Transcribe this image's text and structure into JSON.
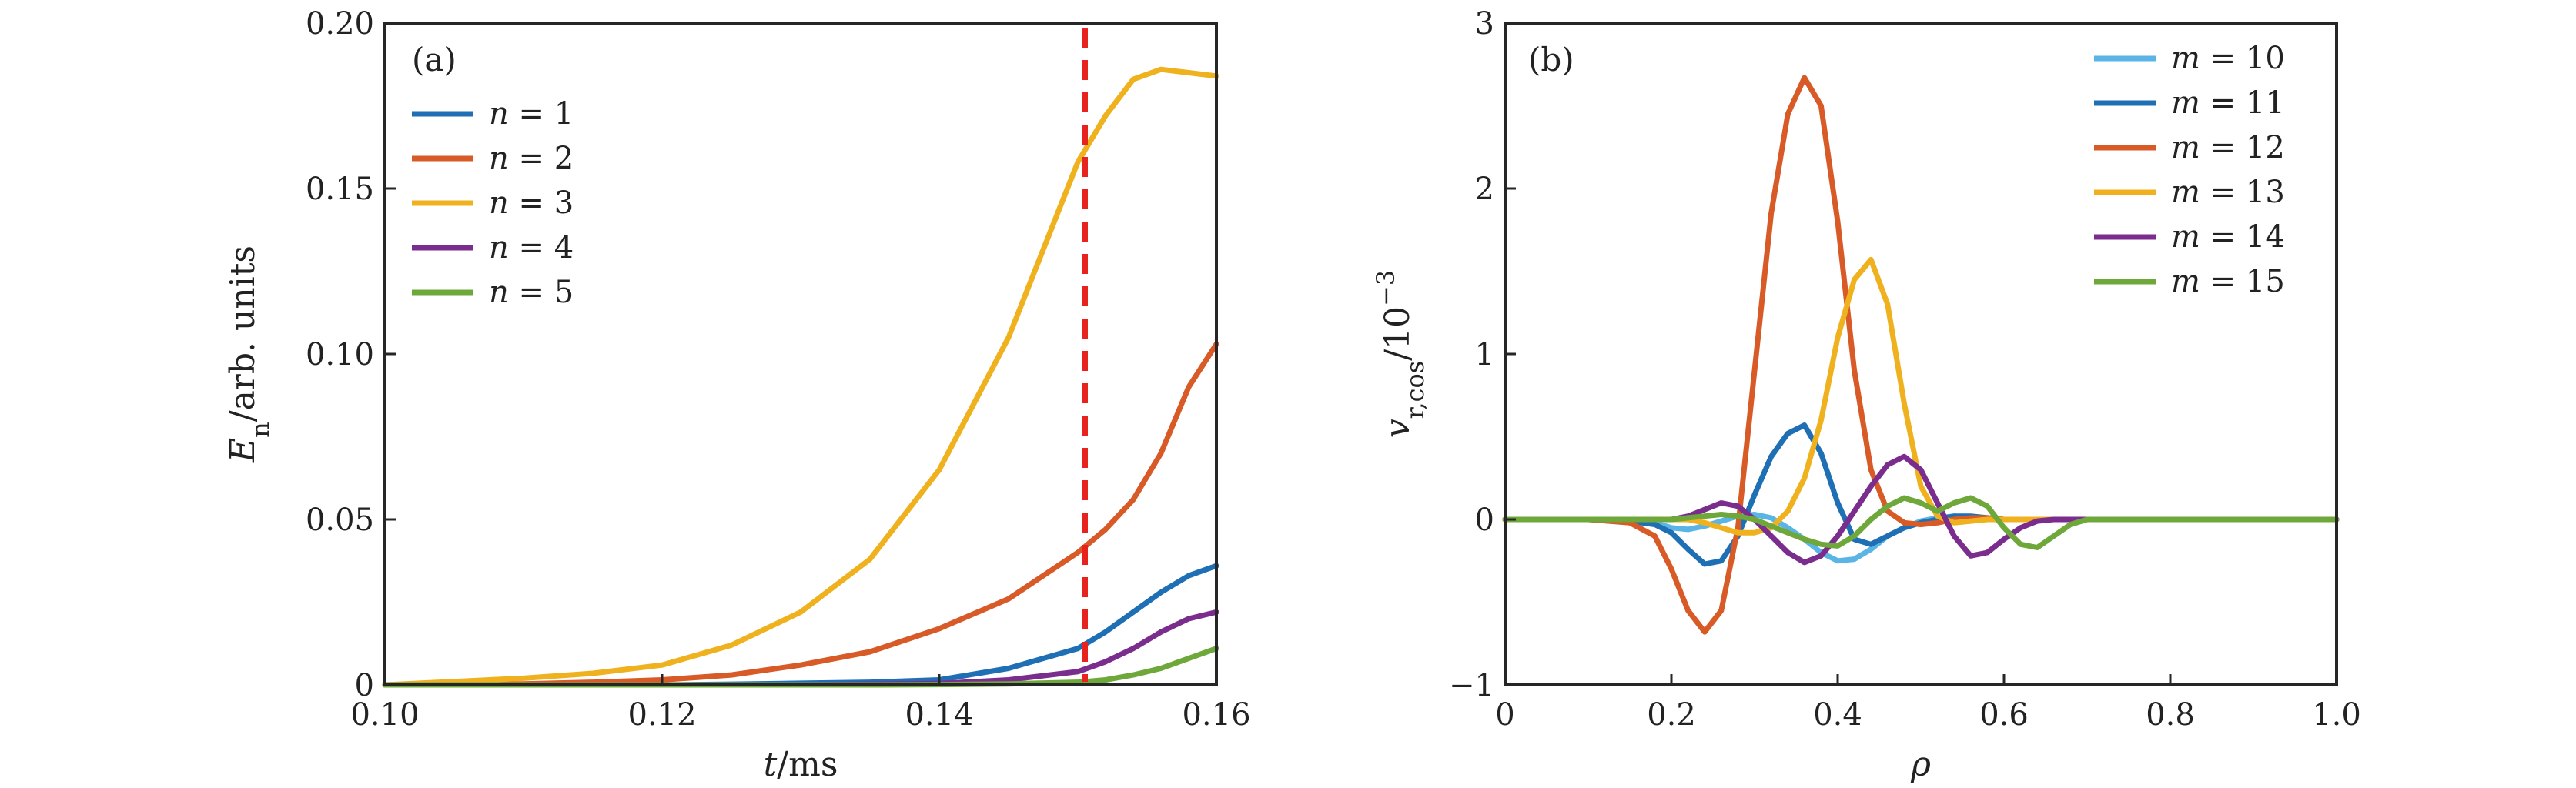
{
  "chart_data": [
    {
      "type": "line",
      "panel_label": "(a)",
      "xlabel": "t/ms",
      "ylabel": "E_n/arb. units",
      "xlim": [
        0.1,
        0.16
      ],
      "ylim": [
        0,
        0.2
      ],
      "xticks": [
        "0.10",
        "0.12",
        "0.14",
        "0.16"
      ],
      "yticks": [
        "0",
        "0.05",
        "0.10",
        "0.15",
        "0.20"
      ],
      "legend_position": "top-left",
      "vertical_marker": {
        "x": 0.1505,
        "color": "#e8221c",
        "style": "dashed"
      },
      "x": [
        0.1,
        0.11,
        0.115,
        0.12,
        0.125,
        0.13,
        0.135,
        0.14,
        0.145,
        0.15,
        0.152,
        0.154,
        0.156,
        0.158,
        0.16
      ],
      "series": [
        {
          "name": "n = 1",
          "color": "#1f6fb5",
          "values": [
            0.0,
            0.0,
            0.0,
            0.0,
            0.0002,
            0.0005,
            0.0008,
            0.0015,
            0.005,
            0.011,
            0.016,
            0.022,
            0.028,
            0.033,
            0.036
          ]
        },
        {
          "name": "n = 2",
          "color": "#d85a26",
          "values": [
            0.0,
            0.0003,
            0.0008,
            0.0015,
            0.003,
            0.006,
            0.01,
            0.017,
            0.026,
            0.04,
            0.047,
            0.056,
            0.07,
            0.09,
            0.103
          ]
        },
        {
          "name": "n = 3",
          "color": "#efb21e",
          "values": [
            0.0,
            0.002,
            0.0035,
            0.006,
            0.012,
            0.022,
            0.038,
            0.065,
            0.105,
            0.158,
            0.172,
            0.183,
            0.186,
            0.185,
            0.184
          ]
        },
        {
          "name": "n = 4",
          "color": "#7b2d8e",
          "values": [
            0.0,
            0.0,
            0.0,
            0.0,
            0.0,
            0.0,
            0.0002,
            0.0004,
            0.0015,
            0.004,
            0.007,
            0.011,
            0.016,
            0.02,
            0.022
          ]
        },
        {
          "name": "n = 5",
          "color": "#6fa83a",
          "values": [
            0.0,
            0.0,
            0.0,
            0.0,
            0.0,
            0.0,
            0.0,
            0.0001,
            0.0003,
            0.0008,
            0.0015,
            0.003,
            0.005,
            0.008,
            0.011
          ]
        }
      ]
    },
    {
      "type": "line",
      "panel_label": "(b)",
      "xlabel": "ρ",
      "ylabel": "v_r,cos/10^-3",
      "xlim": [
        0,
        1.0
      ],
      "ylim": [
        -1,
        3
      ],
      "xticks": [
        "0",
        "0.2",
        "0.4",
        "0.6",
        "0.8",
        "1.0"
      ],
      "yticks": [
        "−1",
        "0",
        "1",
        "2",
        "3"
      ],
      "legend_position": "top-right",
      "x": [
        0,
        0.1,
        0.15,
        0.18,
        0.2,
        0.22,
        0.24,
        0.26,
        0.28,
        0.3,
        0.32,
        0.34,
        0.36,
        0.38,
        0.4,
        0.42,
        0.44,
        0.46,
        0.48,
        0.5,
        0.52,
        0.54,
        0.56,
        0.58,
        0.6,
        0.62,
        0.64,
        0.66,
        0.68,
        0.7,
        0.75,
        0.8,
        1.0
      ],
      "series": [
        {
          "name": "m = 10",
          "color": "#5ab4e6",
          "values": [
            0,
            0,
            0,
            -0.02,
            -0.05,
            -0.06,
            -0.04,
            -0.01,
            0.02,
            0.03,
            0.01,
            -0.05,
            -0.12,
            -0.2,
            -0.25,
            -0.24,
            -0.18,
            -0.1,
            -0.05,
            -0.01,
            0.01,
            0.02,
            0.01,
            0,
            0,
            0,
            0,
            0,
            0,
            0,
            0,
            0,
            0
          ]
        },
        {
          "name": "m = 11",
          "color": "#1f6fb5",
          "values": [
            0,
            0,
            -0.01,
            -0.03,
            -0.08,
            -0.18,
            -0.27,
            -0.25,
            -0.1,
            0.15,
            0.38,
            0.52,
            0.57,
            0.4,
            0.1,
            -0.12,
            -0.15,
            -0.1,
            -0.05,
            -0.02,
            0,
            0.02,
            0.02,
            0.01,
            0,
            0,
            0,
            0,
            0,
            0,
            0,
            0,
            0
          ]
        },
        {
          "name": "m = 12",
          "color": "#d85a26",
          "values": [
            0,
            0,
            -0.02,
            -0.1,
            -0.3,
            -0.55,
            -0.68,
            -0.55,
            -0.05,
            0.9,
            1.85,
            2.45,
            2.67,
            2.5,
            1.8,
            0.9,
            0.3,
            0.05,
            -0.02,
            -0.03,
            -0.02,
            0,
            0.01,
            0.01,
            0,
            0,
            0,
            0,
            0,
            0,
            0,
            0,
            0
          ]
        },
        {
          "name": "m = 13",
          "color": "#efb21e",
          "values": [
            0,
            0,
            0,
            0,
            0,
            0,
            -0.02,
            -0.05,
            -0.08,
            -0.08,
            -0.05,
            0.05,
            0.25,
            0.6,
            1.1,
            1.45,
            1.57,
            1.3,
            0.7,
            0.2,
            0.02,
            -0.02,
            -0.01,
            0,
            0,
            0,
            0,
            0,
            0,
            0,
            0,
            0,
            0
          ]
        },
        {
          "name": "m = 14",
          "color": "#7b2d8e",
          "values": [
            0,
            0,
            0,
            0,
            0,
            0.02,
            0.06,
            0.1,
            0.08,
            0,
            -0.1,
            -0.2,
            -0.26,
            -0.22,
            -0.1,
            0.05,
            0.2,
            0.33,
            0.38,
            0.3,
            0.1,
            -0.1,
            -0.22,
            -0.2,
            -0.12,
            -0.05,
            -0.01,
            0,
            0,
            0,
            0,
            0,
            0
          ]
        },
        {
          "name": "m = 15",
          "color": "#6fa83a",
          "values": [
            0,
            0,
            0,
            0,
            0,
            0.01,
            0.02,
            0.03,
            0.02,
            0,
            -0.04,
            -0.08,
            -0.12,
            -0.15,
            -0.16,
            -0.1,
            0,
            0.08,
            0.13,
            0.1,
            0.05,
            0.1,
            0.13,
            0.08,
            -0.05,
            -0.15,
            -0.17,
            -0.1,
            -0.03,
            0,
            0,
            0,
            0
          ]
        }
      ]
    }
  ]
}
